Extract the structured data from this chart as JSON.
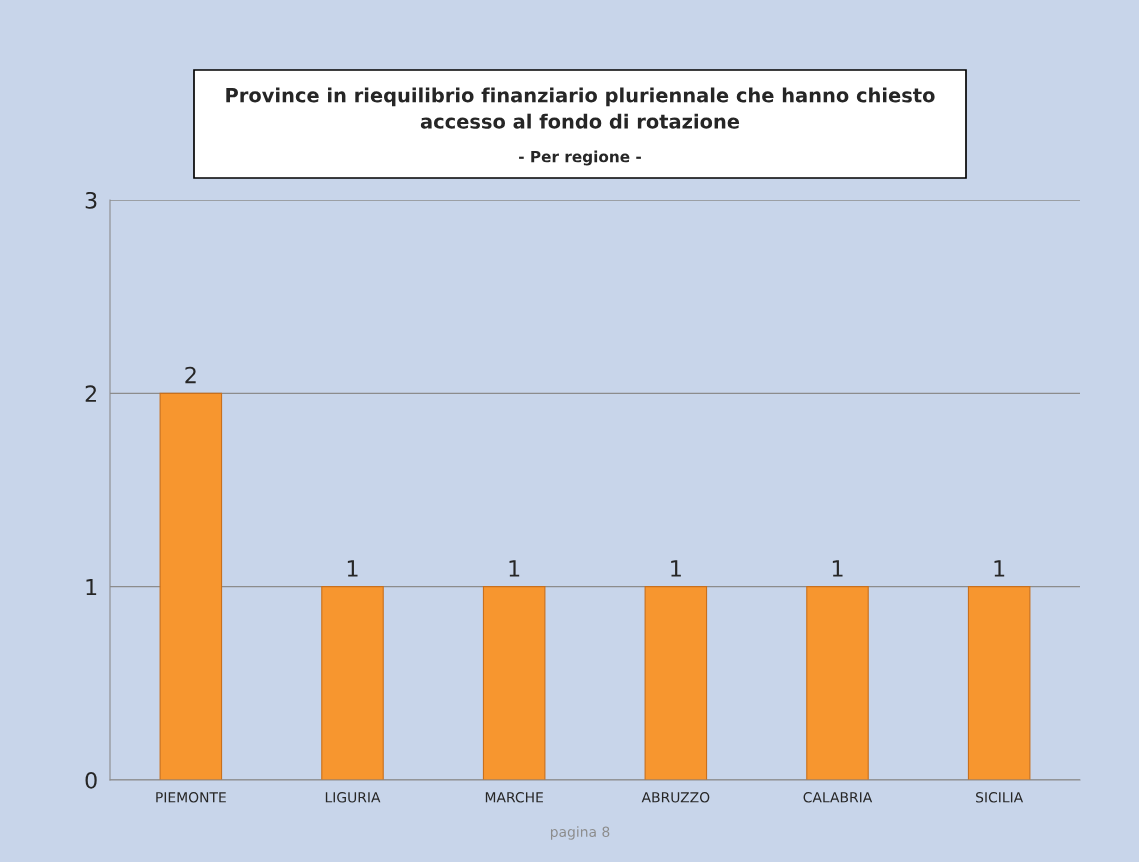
{
  "chart_data": {
    "type": "bar",
    "title": "Province in riequilibrio finanziario pluriennale che hanno chiesto\naccesso al fondo di rotazione",
    "subtitle": "- Per regione -",
    "categories": [
      "PIEMONTE",
      "LIGURIA",
      "MARCHE",
      "ABRUZZO",
      "CALABRIA",
      "SICILIA"
    ],
    "values": [
      2,
      1,
      1,
      1,
      1,
      1
    ],
    "color": "#f7962f",
    "ylim": [
      0,
      3
    ],
    "yticks": [
      0,
      1,
      2,
      3
    ],
    "grid": "y",
    "data_labels": true,
    "annotations": [
      "pagina 8"
    ]
  }
}
